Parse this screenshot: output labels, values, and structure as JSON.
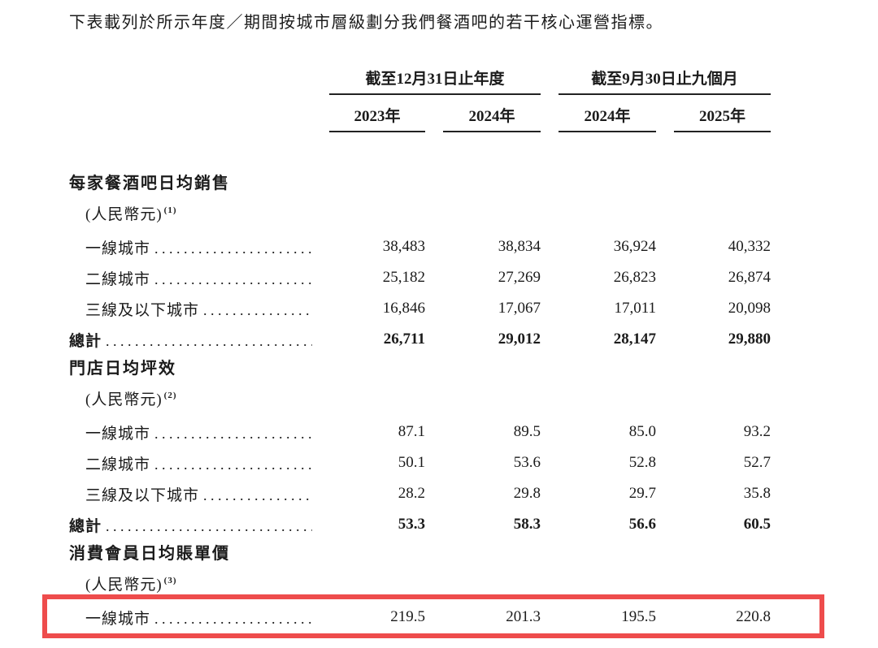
{
  "intro": "下表載列於所示年度／期間按城市層級劃分我們餐酒吧的若干核心運營指標。",
  "table": {
    "col_groups": [
      {
        "label": "截至12月31日止年度",
        "years": [
          "2023年",
          "2024年"
        ]
      },
      {
        "label": "截至9月30日止九個月",
        "years": [
          "2024年",
          "2025年"
        ]
      }
    ],
    "sections": [
      {
        "title": "每家餐酒吧日均銷售",
        "unit": "(人民幣元)",
        "footnote": "(1)",
        "rows": [
          {
            "label": "一線城市",
            "values": [
              "38,483",
              "38,834",
              "36,924",
              "40,332"
            ]
          },
          {
            "label": "二線城市",
            "values": [
              "25,182",
              "27,269",
              "26,823",
              "26,874"
            ]
          },
          {
            "label": "三線及以下城市",
            "values": [
              "16,846",
              "17,067",
              "17,011",
              "20,098"
            ]
          }
        ],
        "total": {
          "label": "總計",
          "values": [
            "26,711",
            "29,012",
            "28,147",
            "29,880"
          ]
        }
      },
      {
        "title": "門店日均坪效",
        "unit": "(人民幣元)",
        "footnote": "(2)",
        "rows": [
          {
            "label": "一線城市",
            "values": [
              "87.1",
              "89.5",
              "85.0",
              "93.2"
            ]
          },
          {
            "label": "二線城市",
            "values": [
              "50.1",
              "53.6",
              "52.8",
              "52.7"
            ]
          },
          {
            "label": "三線及以下城市",
            "values": [
              "28.2",
              "29.8",
              "29.7",
              "35.8"
            ]
          }
        ],
        "total": {
          "label": "總計",
          "values": [
            "53.3",
            "58.3",
            "56.6",
            "60.5"
          ]
        }
      },
      {
        "title": "消費會員日均賬單價",
        "unit": "(人民幣元)",
        "footnote": "(3)",
        "rows": [
          {
            "label": "一線城市",
            "values": [
              "219.5",
              "201.3",
              "195.5",
              "220.8"
            ],
            "highlighted": true
          }
        ]
      }
    ]
  },
  "annotation": {
    "highlight_color": "#ee4c4c"
  }
}
